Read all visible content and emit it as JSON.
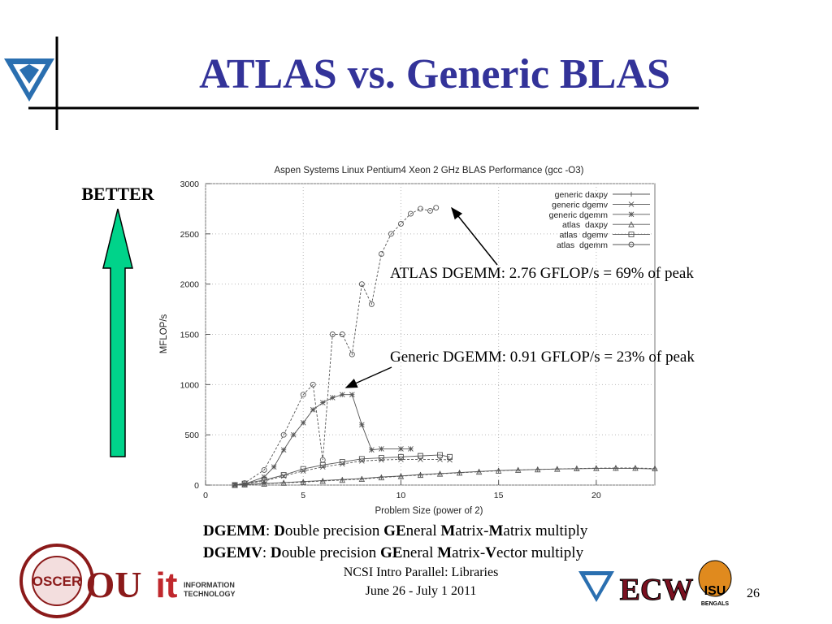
{
  "slide": {
    "title": "ATLAS vs. Generic BLAS",
    "better": "BETTER",
    "definitions": [
      [
        "DGEMM",
        ": ",
        "D",
        "ouble precision ",
        "GE",
        "neral ",
        "M",
        "atrix-",
        "M",
        "atrix multiply"
      ],
      [
        "DGEMV",
        ":  ",
        "D",
        "ouble precision ",
        "GE",
        "neral ",
        "M",
        "atrix-",
        "V",
        "ector multiply"
      ]
    ],
    "footer": [
      "NCSI Intro Parallel: Libraries",
      "June 26 - July 1 2011"
    ],
    "page_number": "26",
    "logos": {
      "oscer": "OSCER",
      "ou": "OU",
      "it": "it",
      "it_line1": "INFORMATION",
      "it_line2": "TECHNOLOGY",
      "ecw": "ECW",
      "isu": "ISU",
      "bengals": "BENGALS"
    }
  },
  "chart_data": {
    "type": "line",
    "title": "Aspen Systems Linux Pentium4 Xeon 2 GHz BLAS Performance (gcc -O3)",
    "x_label": "Problem Size (power of 2)",
    "y_label": "MFLOP/s",
    "xlim": [
      0,
      23
    ],
    "xticks": [
      0,
      5,
      10,
      15,
      20
    ],
    "ylim": [
      0,
      3000
    ],
    "yticks": [
      0,
      500,
      1000,
      1500,
      2000,
      2500,
      3000
    ],
    "grid": true,
    "legend": "top-right",
    "series": [
      {
        "name": "generic daxpy",
        "color": "#555555",
        "marker": "plus",
        "x": [
          1.5,
          2,
          3,
          4,
          5,
          6,
          7,
          8,
          9,
          10,
          11,
          12,
          13,
          14,
          15,
          16,
          17,
          18,
          19,
          20,
          21,
          22,
          23
        ],
        "values": [
          0,
          5,
          15,
          25,
          35,
          45,
          55,
          65,
          80,
          90,
          105,
          115,
          125,
          135,
          145,
          150,
          155,
          160,
          162,
          165,
          165,
          165,
          160
        ]
      },
      {
        "name": "generic dgemv",
        "color": "#555555",
        "marker": "cross",
        "x": [
          1.5,
          2,
          3,
          4,
          5,
          6,
          7,
          8,
          9,
          10,
          11,
          12,
          12.5
        ],
        "values": [
          0,
          10,
          40,
          90,
          140,
          180,
          210,
          240,
          250,
          255,
          255,
          255,
          250
        ]
      },
      {
        "name": "generic dgemm",
        "color": "#555555",
        "marker": "star",
        "x": [
          1.5,
          2,
          3,
          3.5,
          4,
          4.5,
          5,
          5.5,
          6,
          6.5,
          7,
          7.5,
          8,
          8.5,
          9,
          10,
          10.5
        ],
        "values": [
          0,
          10,
          80,
          180,
          350,
          500,
          620,
          750,
          820,
          870,
          900,
          900,
          600,
          350,
          360,
          360,
          360
        ]
      },
      {
        "name": "atlas  daxpy",
        "color": "#555555",
        "marker": "triangle",
        "x": [
          1.5,
          2,
          3,
          4,
          5,
          6,
          7,
          8,
          9,
          10,
          11,
          12,
          13,
          14,
          15,
          16,
          17,
          18,
          19,
          20,
          21,
          22,
          23
        ],
        "values": [
          0,
          5,
          12,
          22,
          30,
          40,
          50,
          60,
          75,
          88,
          100,
          112,
          122,
          132,
          142,
          150,
          155,
          160,
          165,
          168,
          170,
          170,
          165
        ]
      },
      {
        "name": "atlas  dgemv",
        "color": "#555555",
        "marker": "square",
        "x": [
          1.5,
          2,
          3,
          4,
          5,
          6,
          7,
          8,
          9,
          10,
          11,
          12,
          12.5
        ],
        "values": [
          0,
          15,
          50,
          100,
          160,
          200,
          230,
          260,
          270,
          280,
          290,
          300,
          280
        ]
      },
      {
        "name": "atlas  dgemm",
        "color": "#555555",
        "marker": "circle",
        "x": [
          1.5,
          2,
          3,
          4,
          5,
          5.5,
          6,
          6.5,
          7,
          7.5,
          8,
          8.5,
          9,
          9.5,
          10,
          10.5,
          11,
          11.5,
          11.8
        ],
        "values": [
          0,
          20,
          150,
          500,
          900,
          1000,
          250,
          1500,
          1500,
          1300,
          2000,
          1800,
          2300,
          2500,
          2600,
          2700,
          2750,
          2730,
          2760
        ]
      }
    ],
    "annotations": [
      {
        "text": "ATLAS DGEMM:   2.76 GFLOP/s = 69% of peak"
      },
      {
        "text": "Generic DGEMM:   0.91 GFLOP/s = 23% of peak"
      }
    ]
  }
}
